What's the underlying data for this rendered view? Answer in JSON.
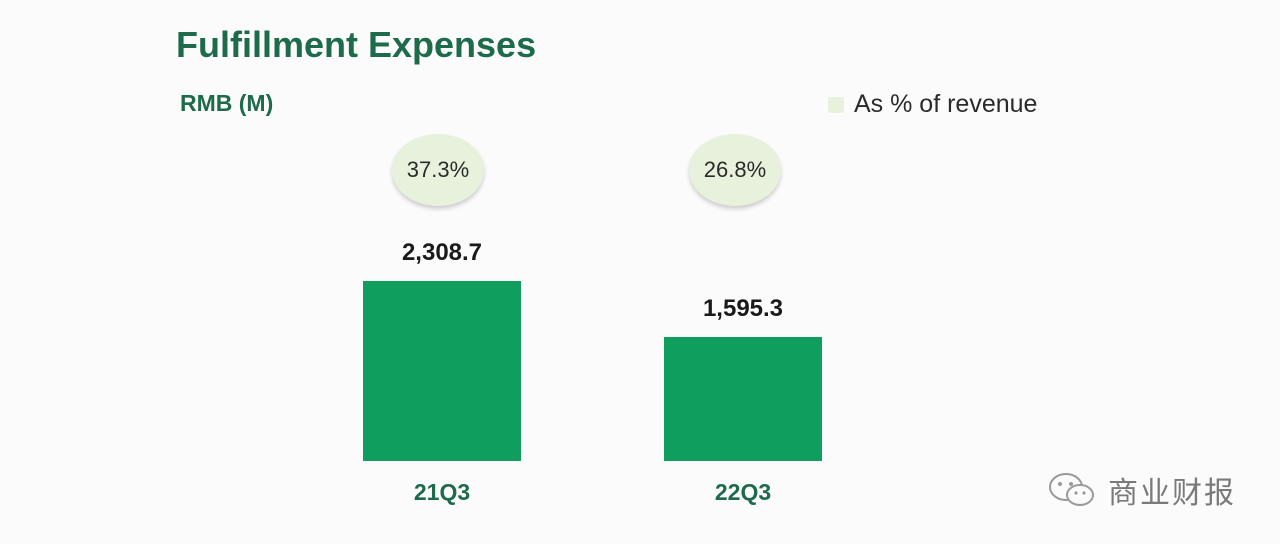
{
  "chart_data": {
    "type": "bar",
    "title": "Fulfillment Expenses",
    "unit_label": "RMB (M)",
    "categories": [
      "21Q3",
      "22Q3"
    ],
    "values": [
      2308.7,
      1595.3
    ],
    "value_labels": [
      "2,308.7",
      "1,595.3"
    ],
    "secondary": {
      "name": "As % of revenue",
      "values": [
        37.3,
        26.8
      ],
      "labels": [
        "37.3%",
        "26.8%"
      ]
    },
    "ylim": [
      0,
      2308.7
    ],
    "grid": false,
    "legend_position": "top-right"
  },
  "colors": {
    "bar": "#109e5e",
    "bubble": "#e8f1dc",
    "title": "#1e6b4c"
  },
  "watermark": {
    "text": "商业财报",
    "icon": "wechat-icon"
  }
}
